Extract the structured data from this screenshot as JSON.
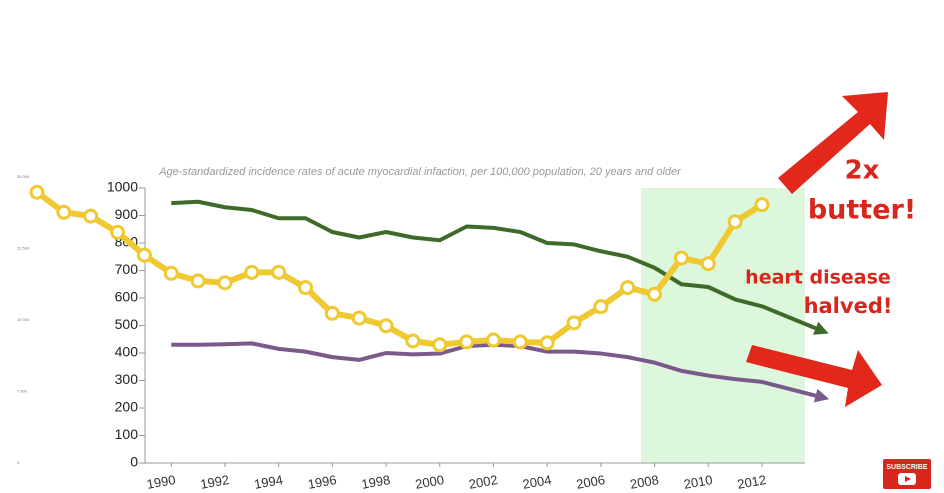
{
  "chart_data": {
    "type": "line",
    "title": "Age-standardized incidence rates of acute myocardial infaction, per 100,000 population, 20 years and older",
    "xlim": [
      1985,
      2014
    ],
    "xticks": [
      1990,
      1992,
      1994,
      1996,
      1998,
      2000,
      2002,
      2004,
      2006,
      2008,
      2010,
      2012
    ],
    "ylim": [
      0,
      1000
    ],
    "yticks": [
      0,
      100,
      200,
      300,
      400,
      500,
      600,
      700,
      800,
      900,
      1000
    ],
    "y2lim": [
      0,
      30000
    ],
    "y2ticks": [
      {
        "value": 0,
        "label": "0"
      },
      {
        "value": 7500,
        "label": "7 500"
      },
      {
        "value": 15000,
        "label": "15 000"
      },
      {
        "value": 22500,
        "label": "22 500"
      },
      {
        "value": 30000,
        "label": "30 000"
      }
    ],
    "highlight": [
      2007.5,
      2013.6
    ],
    "highlight_color": "#dcf7dc",
    "series": [
      {
        "color": "#3f6b2a",
        "x": [
          1990,
          1991,
          1992,
          1993,
          1994,
          1995,
          1996,
          1997,
          1998,
          1999,
          2000,
          2001,
          2002,
          2003,
          2004,
          2005,
          2006,
          2007,
          2008,
          2009,
          2010,
          2011,
          2012,
          2013,
          2014
        ],
        "values": [
          945,
          950,
          930,
          920,
          890,
          890,
          840,
          820,
          840,
          820,
          810,
          860,
          855,
          840,
          800,
          795,
          770,
          750,
          710,
          650,
          640,
          595,
          570,
          530,
          490
        ]
      },
      {
        "color": "#7a5a8a",
        "x": [
          1990,
          1991,
          1992,
          1993,
          1994,
          1995,
          1996,
          1997,
          1998,
          1999,
          2000,
          2001,
          2002,
          2003,
          2004,
          2005,
          2006,
          2007,
          2008,
          2009,
          2010,
          2011,
          2012,
          2013,
          2014
        ],
        "values": [
          430,
          430,
          432,
          435,
          415,
          405,
          385,
          375,
          400,
          395,
          398,
          425,
          430,
          425,
          405,
          405,
          398,
          385,
          365,
          335,
          318,
          305,
          295,
          270,
          245
        ]
      },
      {
        "color": "#f0c830",
        "axis": "y2",
        "markers": true,
        "x": [
          1985,
          1986,
          1987,
          1988,
          1989,
          1990,
          1991,
          1992,
          1993,
          1994,
          1995,
          1996,
          1997,
          1998,
          1999,
          2000,
          2001,
          2002,
          2003,
          2004,
          2005,
          2006,
          2007,
          2008,
          2009,
          2010,
          2011,
          2012
        ],
        "values": [
          28400,
          26300,
          25900,
          24200,
          21800,
          19900,
          19100,
          18900,
          20000,
          20000,
          18400,
          15700,
          15200,
          14400,
          12800,
          12400,
          12700,
          12900,
          12700,
          12600,
          14700,
          16400,
          18400,
          17700,
          21500,
          20900,
          25300,
          27100
        ]
      }
    ],
    "annotations": [
      "2x",
      "butter!",
      "heart disease",
      "halved!"
    ]
  },
  "overlay": {
    "subscribe": "SUBSCRIBE"
  }
}
